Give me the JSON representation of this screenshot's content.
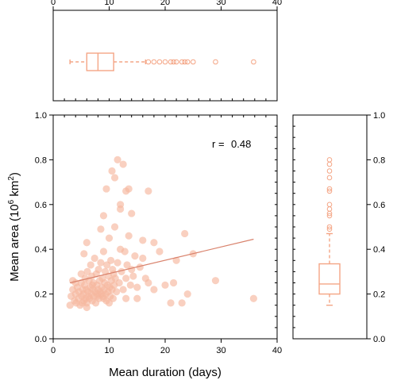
{
  "chart_data": {
    "type": "scatter",
    "xlabel": "Mean duration (days)",
    "ylabel": {
      "main": "Mean area (10",
      "sup": "6",
      "rest": " km",
      "sup2": "2",
      "close": ")"
    },
    "xlim": [
      0,
      40
    ],
    "ylim": [
      0,
      1.0
    ],
    "x_ticks": [
      "0",
      "10",
      "20",
      "30",
      "40"
    ],
    "y_ticks": [
      "0.0",
      "0.2",
      "0.4",
      "0.6",
      "0.8",
      "1.0"
    ],
    "annotation": {
      "label": "r =",
      "value": "0.48"
    },
    "colors": {
      "points": "#f6b79e",
      "line": "#d9826c",
      "box": "#f4a585"
    },
    "regression": {
      "x0": 3,
      "y0": 0.25,
      "x1": 35.8,
      "y1": 0.445
    },
    "points": [
      [
        3.0,
        0.15
      ],
      [
        3.2,
        0.19
      ],
      [
        3.5,
        0.22
      ],
      [
        3.8,
        0.17
      ],
      [
        4.0,
        0.2
      ],
      [
        4.1,
        0.16
      ],
      [
        4.3,
        0.23
      ],
      [
        4.5,
        0.18
      ],
      [
        4.6,
        0.21
      ],
      [
        4.8,
        0.15
      ],
      [
        5.0,
        0.25
      ],
      [
        5.1,
        0.19
      ],
      [
        5.2,
        0.16
      ],
      [
        5.3,
        0.22
      ],
      [
        5.4,
        0.2
      ],
      [
        5.5,
        0.17
      ],
      [
        5.6,
        0.24
      ],
      [
        5.7,
        0.27
      ],
      [
        5.8,
        0.18
      ],
      [
        5.9,
        0.22
      ],
      [
        6.0,
        0.16
      ],
      [
        6.1,
        0.3
      ],
      [
        6.2,
        0.21
      ],
      [
        6.3,
        0.19
      ],
      [
        6.4,
        0.26
      ],
      [
        6.5,
        0.18
      ],
      [
        6.6,
        0.23
      ],
      [
        6.7,
        0.33
      ],
      [
        6.8,
        0.2
      ],
      [
        6.9,
        0.28
      ],
      [
        7.0,
        0.17
      ],
      [
        7.1,
        0.22
      ],
      [
        7.2,
        0.25
      ],
      [
        7.3,
        0.19
      ],
      [
        7.4,
        0.36
      ],
      [
        7.5,
        0.21
      ],
      [
        7.6,
        0.16
      ],
      [
        7.7,
        0.29
      ],
      [
        7.8,
        0.24
      ],
      [
        7.9,
        0.19
      ],
      [
        8.0,
        0.22
      ],
      [
        8.1,
        0.31
      ],
      [
        8.2,
        0.18
      ],
      [
        8.3,
        0.26
      ],
      [
        8.4,
        0.21
      ],
      [
        8.5,
        0.34
      ],
      [
        8.6,
        0.2
      ],
      [
        8.7,
        0.23
      ],
      [
        8.8,
        0.27
      ],
      [
        8.9,
        0.19
      ],
      [
        9.0,
        0.39
      ],
      [
        9.1,
        0.22
      ],
      [
        9.2,
        0.25
      ],
      [
        9.3,
        0.3
      ],
      [
        9.4,
        0.2
      ],
      [
        9.5,
        0.17
      ],
      [
        9.6,
        0.33
      ],
      [
        9.7,
        0.24
      ],
      [
        9.8,
        0.21
      ],
      [
        9.9,
        0.28
      ],
      [
        10.0,
        0.45
      ],
      [
        10.1,
        0.23
      ],
      [
        10.2,
        0.19
      ],
      [
        10.3,
        0.35
      ],
      [
        10.4,
        0.26
      ],
      [
        10.5,
        0.22
      ],
      [
        10.6,
        0.31
      ],
      [
        10.7,
        0.18
      ],
      [
        10.8,
        0.29
      ],
      [
        10.9,
        0.24
      ],
      [
        11.0,
        0.5
      ],
      [
        11.1,
        0.27
      ],
      [
        11.3,
        0.21
      ],
      [
        11.5,
        0.34
      ],
      [
        11.8,
        0.25
      ],
      [
        12.0,
        0.58
      ],
      [
        12.2,
        0.3
      ],
      [
        12.5,
        0.22
      ],
      [
        12.8,
        0.39
      ],
      [
        13.0,
        0.27
      ],
      [
        13.2,
        0.33
      ],
      [
        13.5,
        0.46
      ],
      [
        13.8,
        0.24
      ],
      [
        14.0,
        0.31
      ],
      [
        14.3,
        0.28
      ],
      [
        14.6,
        0.37
      ],
      [
        15.0,
        0.23
      ],
      [
        15.5,
        0.32
      ],
      [
        16.0,
        0.36
      ],
      [
        16.5,
        0.27
      ],
      [
        5.5,
        0.38
      ],
      [
        6.0,
        0.43
      ],
      [
        8.5,
        0.49
      ],
      [
        9.0,
        0.55
      ],
      [
        9.5,
        0.67
      ],
      [
        10.5,
        0.75
      ],
      [
        11.5,
        0.8
      ],
      [
        12.5,
        0.78
      ],
      [
        12.0,
        0.6
      ],
      [
        13.0,
        0.66
      ],
      [
        13.5,
        0.67
      ],
      [
        14.0,
        0.56
      ],
      [
        17.0,
        0.66
      ],
      [
        11.0,
        0.72
      ],
      [
        12.0,
        0.4
      ],
      [
        16.0,
        0.44
      ],
      [
        18.0,
        0.43
      ],
      [
        19.0,
        0.39
      ],
      [
        17.0,
        0.25
      ],
      [
        15.0,
        0.18
      ],
      [
        20.0,
        0.24
      ],
      [
        21.0,
        0.16
      ],
      [
        21.5,
        0.25
      ],
      [
        22.0,
        0.35
      ],
      [
        23.0,
        0.16
      ],
      [
        23.5,
        0.47
      ],
      [
        24.0,
        0.2
      ],
      [
        25.0,
        0.38
      ],
      [
        18.0,
        0.22
      ],
      [
        13.0,
        0.18
      ],
      [
        29.0,
        0.26
      ],
      [
        35.8,
        0.18
      ],
      [
        7.0,
        0.24
      ],
      [
        8.0,
        0.2
      ],
      [
        9.0,
        0.18
      ],
      [
        10.0,
        0.16
      ],
      [
        4.0,
        0.25
      ],
      [
        6.0,
        0.14
      ],
      [
        5.0,
        0.29
      ],
      [
        3.5,
        0.26
      ]
    ],
    "box_x": {
      "whisker_low": 3.0,
      "q1": 6.0,
      "median": 8.0,
      "q3": 10.8,
      "whisker_high": 16.5,
      "outliers": [
        17.0,
        18.0,
        19.0,
        20.0,
        21.0,
        21.5,
        22.0,
        23.0,
        23.5,
        24.0,
        25.0,
        29.0,
        35.8
      ]
    },
    "box_y": {
      "whisker_low": 0.15,
      "q1": 0.2,
      "median": 0.245,
      "q3": 0.335,
      "whisker_high": 0.47,
      "outliers": [
        0.49,
        0.5,
        0.55,
        0.56,
        0.58,
        0.6,
        0.66,
        0.67,
        0.72,
        0.75,
        0.78,
        0.8
      ]
    }
  }
}
